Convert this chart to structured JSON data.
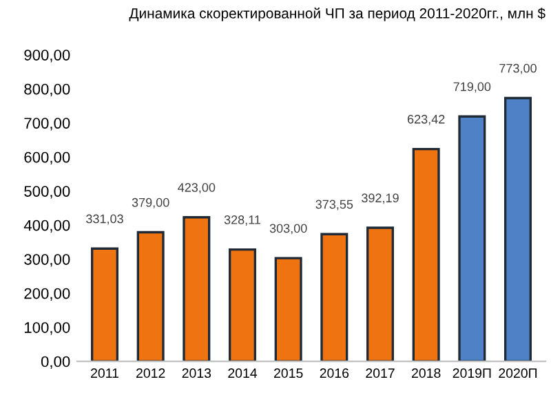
{
  "chart_data": {
    "type": "bar",
    "title": "Динамика скоректированной ЧП за период 2011-2020гг., млн $",
    "categories": [
      "2011",
      "2012",
      "2013",
      "2014",
      "2015",
      "2016",
      "2017",
      "2018",
      "2019П",
      "2020П"
    ],
    "values": [
      331.03,
      379,
      423,
      328.11,
      303,
      373.55,
      392.19,
      623.42,
      719,
      773
    ],
    "colors": [
      "#ef7311",
      "#ef7311",
      "#ef7311",
      "#ef7311",
      "#ef7311",
      "#ef7311",
      "#ef7311",
      "#ef7311",
      "#4f81c6",
      "#4f81c6"
    ],
    "value_labels": [
      "331,03",
      "379,00",
      "423,00",
      "328,11",
      "303,00",
      "373,55",
      "392,19",
      "623,42",
      "719,00",
      "773,00"
    ],
    "ylim": [
      0,
      900
    ],
    "yticks": [
      {
        "value": 0,
        "label": "0,00"
      },
      {
        "value": 100,
        "label": "100,00"
      },
      {
        "value": 200,
        "label": "200,00"
      },
      {
        "value": 300,
        "label": "300,00"
      },
      {
        "value": 400,
        "label": "400,00"
      },
      {
        "value": 500,
        "label": "500,00"
      },
      {
        "value": 600,
        "label": "600,00"
      },
      {
        "value": 700,
        "label": "700,00"
      },
      {
        "value": 800,
        "label": "800,00"
      },
      {
        "value": 900,
        "label": "900,00"
      }
    ],
    "grid": false,
    "legend": false
  }
}
